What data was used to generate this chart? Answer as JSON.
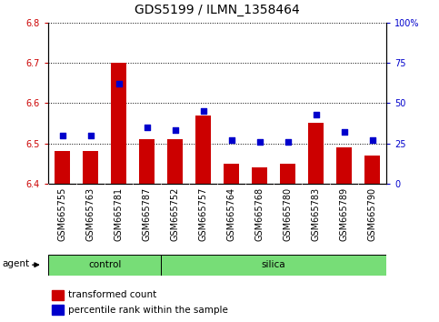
{
  "title": "GDS5199 / ILMN_1358464",
  "samples": [
    "GSM665755",
    "GSM665763",
    "GSM665781",
    "GSM665787",
    "GSM665752",
    "GSM665757",
    "GSM665764",
    "GSM665768",
    "GSM665780",
    "GSM665783",
    "GSM665789",
    "GSM665790"
  ],
  "groups": [
    "control",
    "control",
    "control",
    "control",
    "silica",
    "silica",
    "silica",
    "silica",
    "silica",
    "silica",
    "silica",
    "silica"
  ],
  "transformed_count": [
    6.48,
    6.48,
    6.7,
    6.51,
    6.51,
    6.57,
    6.45,
    6.44,
    6.45,
    6.55,
    6.49,
    6.47
  ],
  "percentile_rank": [
    30,
    30,
    62,
    35,
    33,
    45,
    27,
    26,
    26,
    43,
    32,
    27
  ],
  "ylim_left": [
    6.4,
    6.8
  ],
  "ylim_right": [
    0,
    100
  ],
  "yticks_left": [
    6.4,
    6.5,
    6.6,
    6.7,
    6.8
  ],
  "yticks_right": [
    0,
    25,
    50,
    75,
    100
  ],
  "ytick_labels_right": [
    "0",
    "25",
    "50",
    "75",
    "100%"
  ],
  "bar_color": "#cc0000",
  "dot_color": "#0000cc",
  "bar_bottom": 6.4,
  "group_bar_color": "#77dd77",
  "agent_label": "agent",
  "legend_bar_label": "transformed count",
  "legend_dot_label": "percentile rank within the sample",
  "xtick_bg_color": "#c0c0c0",
  "title_fontsize": 10,
  "tick_fontsize": 7,
  "label_fontsize": 7.5,
  "n_control": 4,
  "n_silica": 8
}
